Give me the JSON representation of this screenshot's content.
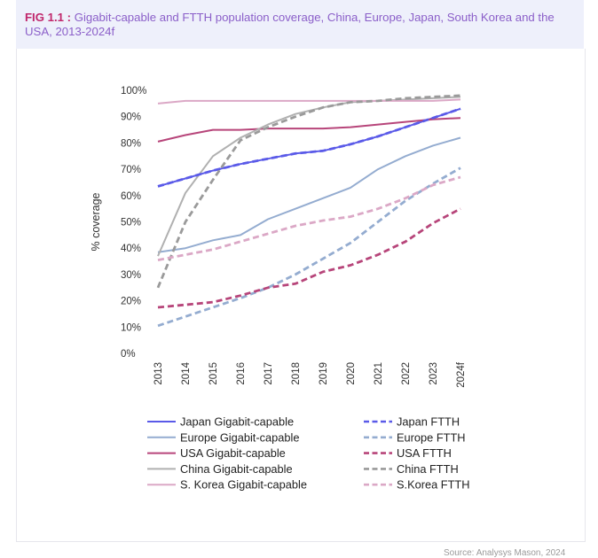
{
  "header": {
    "fig_label": "FIG 1.1 :",
    "title": "Gigabit-capable and FTTH population coverage, China, Europe, Japan, South Korea and the USA, 2013-2024f"
  },
  "source": "Source: Analysys Mason, 2024",
  "chart_data": {
    "type": "line",
    "ylabel": "% coverage",
    "xlabel": "",
    "categories": [
      "2013",
      "2014",
      "2015",
      "2016",
      "2017",
      "2018",
      "2019",
      "2020",
      "2021",
      "2022",
      "2023",
      "2024f"
    ],
    "yticks": [
      "0%",
      "10%",
      "20%",
      "30%",
      "40%",
      "50%",
      "60%",
      "70%",
      "80%",
      "90%",
      "100%"
    ],
    "ylim": [
      0,
      100
    ],
    "grid": false,
    "legend_position": "bottom",
    "series": [
      {
        "name": "Japan Gigabit-capable",
        "color": "#5a5ae8",
        "dash": false,
        "values": [
          63.5,
          66.5,
          69.5,
          72,
          74,
          76,
          77,
          79.5,
          82.5,
          86,
          89.5,
          93
        ]
      },
      {
        "name": "Japan FTTH",
        "color": "#5a5ae8",
        "dash": true,
        "values": [
          63.5,
          66.5,
          69.5,
          72,
          74,
          76,
          77,
          79.5,
          82.5,
          86,
          89.5,
          93
        ]
      },
      {
        "name": "Europe Gigabit-capable",
        "color": "#94acd0",
        "dash": false,
        "values": [
          38.5,
          40,
          43,
          45,
          51,
          55,
          59,
          63,
          70,
          75,
          79,
          82
        ]
      },
      {
        "name": "Europe FTTH",
        "color": "#94acd0",
        "dash": true,
        "values": [
          10.5,
          14,
          17.5,
          21,
          25,
          30,
          36,
          42,
          50,
          58,
          64.5,
          70.5
        ]
      },
      {
        "name": "USA Gigabit-capable",
        "color": "#b7457a",
        "dash": false,
        "values": [
          80.5,
          83,
          85,
          85,
          85.5,
          85.5,
          85.5,
          86,
          87,
          88,
          89,
          89.5
        ]
      },
      {
        "name": "USA FTTH",
        "color": "#b7457a",
        "dash": true,
        "values": [
          17.5,
          18.5,
          19.5,
          22,
          25,
          26.5,
          31,
          33.5,
          37.5,
          42.5,
          49.5,
          55
        ]
      },
      {
        "name": "China Gigabit-capable",
        "color": "#b0b0b0",
        "dash": false,
        "values": [
          37,
          61,
          75,
          82,
          87,
          91,
          93.5,
          95.5,
          96,
          96.5,
          97,
          97.5
        ]
      },
      {
        "name": "China FTTH",
        "color": "#9a9a9a",
        "dash": true,
        "values": [
          25,
          50,
          66,
          81,
          86,
          90,
          93.5,
          95.5,
          96,
          97,
          97.5,
          98
        ]
      },
      {
        "name": "S. Korea Gigabit-capable",
        "color": "#dba8c6",
        "dash": false,
        "values": [
          95,
          96,
          96,
          96,
          96,
          96,
          96,
          96,
          96,
          96,
          96,
          96.5
        ]
      },
      {
        "name": "S.Korea FTTH",
        "color": "#dba8c6",
        "dash": true,
        "values": [
          35.5,
          37.5,
          39.5,
          42.5,
          45.5,
          48.5,
          50.5,
          52,
          55,
          59,
          64,
          67
        ]
      }
    ]
  }
}
